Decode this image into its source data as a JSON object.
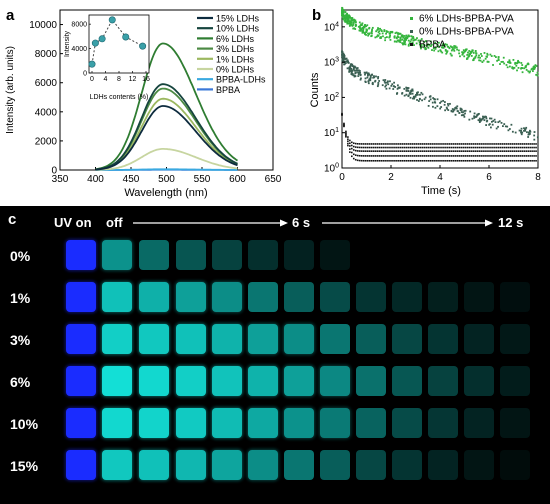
{
  "chart_data": [
    {
      "panel": "a",
      "type": "line",
      "xlabel": "Wavelength (nm)",
      "ylabel": "Intensity (arb. units)",
      "xlim": [
        350,
        650
      ],
      "ylim": [
        0,
        11000
      ],
      "xticks": [
        350,
        400,
        450,
        500,
        550,
        600,
        650
      ],
      "yticks": [
        0,
        2000,
        4000,
        6000,
        8000,
        10000
      ],
      "legend_position": "top-right",
      "series": [
        {
          "name": "15% LDHs",
          "peak": 4400,
          "color": "#0d2b3e"
        },
        {
          "name": "10% LDHs",
          "peak": 5900,
          "color": "#16453e"
        },
        {
          "name": "6% LDHs",
          "peak": 8700,
          "color": "#2f7d32"
        },
        {
          "name": "3% LDHs",
          "peak": 5600,
          "color": "#4c8a44"
        },
        {
          "name": "1% LDHs",
          "peak": 4900,
          "color": "#9cb860"
        },
        {
          "name": "0% LDHs",
          "peak": 1450,
          "color": "#c7d5a0"
        },
        {
          "name": "BPBA-LDHs",
          "peak": 50,
          "color": "#3aa9e0"
        },
        {
          "name": "BPBA",
          "peak": 20,
          "color": "#3a78d8"
        }
      ],
      "peak_wavelength": 495,
      "inset": {
        "xlabel": "LDHs contents (%)",
        "ylabel": "Intensity",
        "xticks": [
          0,
          4,
          8,
          12,
          16
        ],
        "yticks": [
          0,
          4000,
          8000
        ],
        "ylim": [
          0,
          9500
        ],
        "x": [
          0,
          1,
          3,
          6,
          10,
          15
        ],
        "y": [
          1450,
          4900,
          5600,
          8700,
          5900,
          4400
        ]
      }
    },
    {
      "panel": "b",
      "type": "scatter",
      "xlabel": "Time (s)",
      "ylabel": "Counts",
      "xlim": [
        0,
        8
      ],
      "ylim_log": [
        1,
        30000
      ],
      "xticks": [
        0,
        2,
        4,
        6,
        8
      ],
      "yticks": [
        "10^0",
        "10^1",
        "10^2",
        "10^3",
        "10^4"
      ],
      "legend_position": "top-right",
      "series": [
        {
          "name": "6% LDHs-BPBA-PVA",
          "color": "#34b43c",
          "initial_counts": 25000,
          "tau": 0.9
        },
        {
          "name": "0% LDHs-BPBA-PVA",
          "color": "#3a5f52",
          "initial_counts": 1500,
          "tau": 0.55
        },
        {
          "name": "BPBA",
          "color": "#111111",
          "initial_counts": 30,
          "tau": 0.1
        }
      ]
    }
  ],
  "panel_c": {
    "label": "c",
    "uv_label": "UV on",
    "off_label": "off",
    "mid_label": "6 s",
    "end_label": "12 s",
    "rows": [
      {
        "label": "0%",
        "levels": [
          1.0,
          0.62,
          0.45,
          0.36,
          0.28,
          0.2,
          0.14,
          0.09,
          0.0,
          0.0,
          0.0,
          0.0,
          0.0
        ]
      },
      {
        "label": "1%",
        "levels": [
          1.0,
          0.82,
          0.75,
          0.68,
          0.6,
          0.5,
          0.4,
          0.32,
          0.22,
          0.17,
          0.13,
          0.09,
          0.06
        ]
      },
      {
        "label": "3%",
        "levels": [
          1.0,
          0.88,
          0.85,
          0.82,
          0.76,
          0.68,
          0.6,
          0.5,
          0.4,
          0.3,
          0.22,
          0.15,
          0.1
        ]
      },
      {
        "label": "6%",
        "levels": [
          1.0,
          0.95,
          0.92,
          0.88,
          0.83,
          0.76,
          0.68,
          0.58,
          0.48,
          0.37,
          0.28,
          0.2,
          0.12
        ]
      },
      {
        "label": "10%",
        "levels": [
          1.0,
          0.92,
          0.9,
          0.86,
          0.8,
          0.72,
          0.62,
          0.52,
          0.42,
          0.32,
          0.23,
          0.15,
          0.09
        ]
      },
      {
        "label": "15%",
        "levels": [
          1.0,
          0.85,
          0.82,
          0.78,
          0.7,
          0.6,
          0.5,
          0.4,
          0.3,
          0.22,
          0.15,
          0.09,
          0.05
        ]
      }
    ]
  }
}
